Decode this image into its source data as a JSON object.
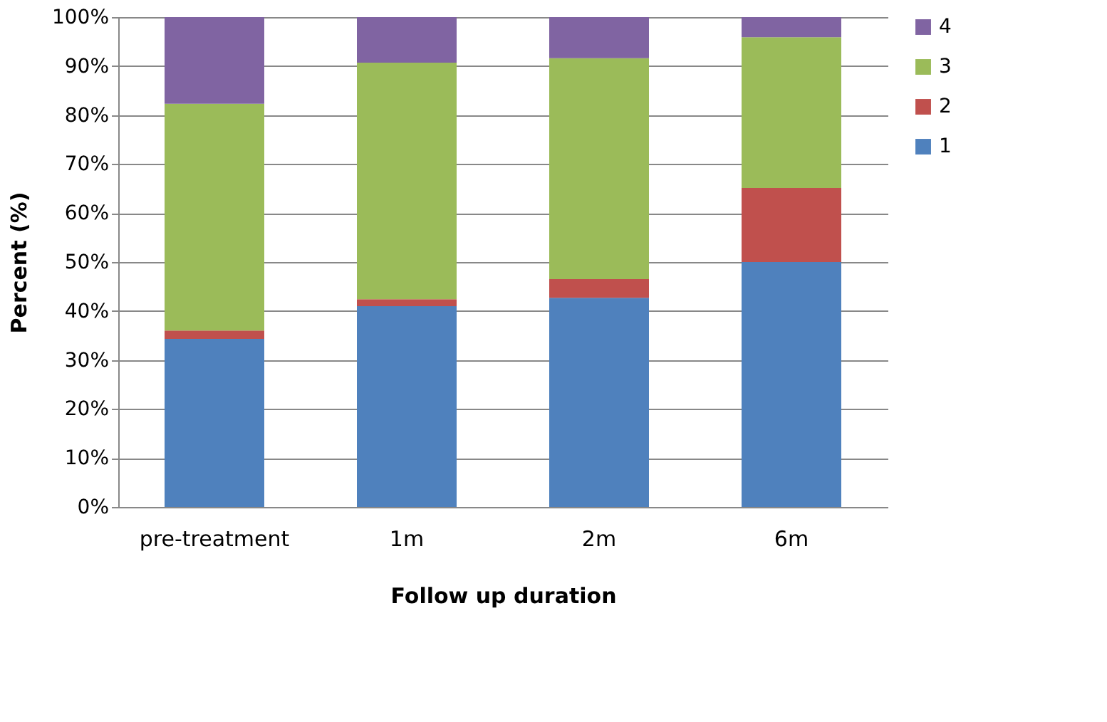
{
  "chart_data": {
    "type": "bar",
    "stacked": true,
    "xlabel": "Follow up duration",
    "ylabel": "Percent (%)",
    "categories": [
      "pre-treatment",
      "1m",
      "2m",
      "6m"
    ],
    "series": [
      {
        "name": "1",
        "color": "#4f81bd",
        "values": [
          34.3,
          41.0,
          42.7,
          50.0
        ]
      },
      {
        "name": "2",
        "color": "#c0504d",
        "values": [
          1.7,
          1.4,
          3.8,
          15.1
        ]
      },
      {
        "name": "3",
        "color": "#9bbb59",
        "values": [
          46.3,
          48.3,
          45.1,
          30.8
        ]
      },
      {
        "name": "4",
        "color": "#8064a2",
        "values": [
          17.7,
          9.3,
          8.4,
          4.1
        ]
      }
    ],
    "ylim": [
      0,
      100
    ],
    "yticks": [
      {
        "value": 0,
        "label": "0%"
      },
      {
        "value": 10,
        "label": "10%"
      },
      {
        "value": 20,
        "label": "20%"
      },
      {
        "value": 30,
        "label": "30%"
      },
      {
        "value": 40,
        "label": "40%"
      },
      {
        "value": 50,
        "label": "50%"
      },
      {
        "value": 60,
        "label": "60%"
      },
      {
        "value": 70,
        "label": "70%"
      },
      {
        "value": 80,
        "label": "80%"
      },
      {
        "value": 90,
        "label": "90%"
      },
      {
        "value": 100,
        "label": "100%"
      }
    ],
    "grid": "y",
    "legend": "right"
  }
}
